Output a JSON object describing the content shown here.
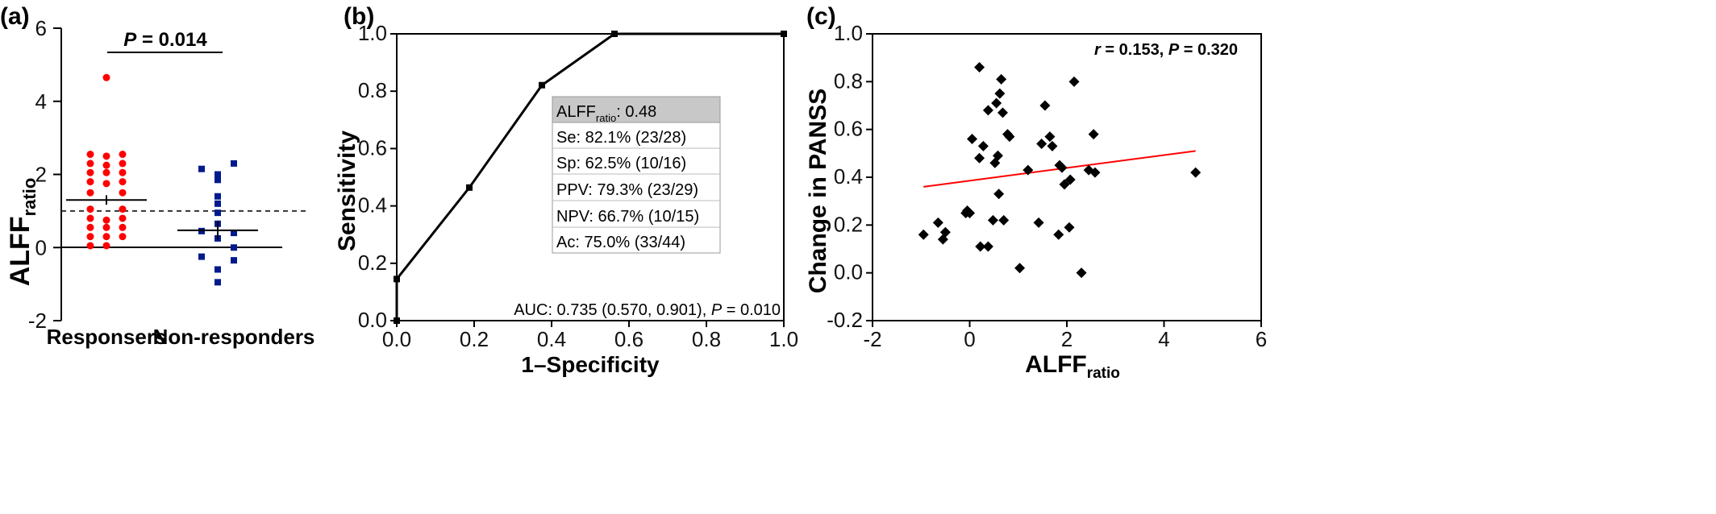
{
  "chart_data": [
    {
      "panel_label": "(a)",
      "type": "scatter",
      "ylabel": "ALFF",
      "ylabel_sub": "ratio",
      "categories": [
        "Responsers",
        "Non-responders"
      ],
      "ylim": [
        -2,
        6
      ],
      "yticks": [
        -2,
        0,
        2,
        4,
        6
      ],
      "yticks_labels": [
        "-2",
        "0",
        "2",
        "4",
        "6"
      ],
      "threshold_dashed": 1.0,
      "zero_line": 0,
      "annotation": {
        "italic": "P",
        "rest": " = 0.014"
      },
      "series": [
        {
          "name": "Responsers",
          "color": "#ff0000",
          "marker": "circle",
          "mean": 1.3,
          "sem_half": 0.13,
          "values": [
            {
              "dx": 0,
              "y": 4.65
            },
            {
              "dx": -0.5,
              "y": 2.55
            },
            {
              "dx": 0,
              "y": 2.5
            },
            {
              "dx": 0.5,
              "y": 2.55
            },
            {
              "dx": -0.5,
              "y": 2.3
            },
            {
              "dx": 0,
              "y": 2.25
            },
            {
              "dx": 0.5,
              "y": 2.3
            },
            {
              "dx": -0.5,
              "y": 2.05
            },
            {
              "dx": 0,
              "y": 2.05
            },
            {
              "dx": 0.5,
              "y": 2.05
            },
            {
              "dx": -0.5,
              "y": 1.8
            },
            {
              "dx": 0,
              "y": 1.75
            },
            {
              "dx": 0.5,
              "y": 1.8
            },
            {
              "dx": -0.5,
              "y": 1.5
            },
            {
              "dx": 0.5,
              "y": 1.5
            },
            {
              "dx": -0.5,
              "y": 1.05
            },
            {
              "dx": 0.5,
              "y": 1.05
            },
            {
              "dx": -0.5,
              "y": 0.8
            },
            {
              "dx": 0,
              "y": 0.75
            },
            {
              "dx": 0.5,
              "y": 0.8
            },
            {
              "dx": -0.5,
              "y": 0.55
            },
            {
              "dx": 0,
              "y": 0.55
            },
            {
              "dx": 0.5,
              "y": 0.55
            },
            {
              "dx": -0.5,
              "y": 0.3
            },
            {
              "dx": 0,
              "y": 0.3
            },
            {
              "dx": 0.5,
              "y": 0.3
            },
            {
              "dx": -0.5,
              "y": 0.05
            },
            {
              "dx": 0,
              "y": 0.05
            }
          ]
        },
        {
          "name": "Non-responders",
          "color": "#001a8c",
          "marker": "square",
          "mean": 0.47,
          "sem_half": 0.25,
          "values": [
            {
              "dx": 0.5,
              "y": 2.3
            },
            {
              "dx": -0.5,
              "y": 2.15
            },
            {
              "dx": 0,
              "y": 2.0
            },
            {
              "dx": 0,
              "y": 1.85
            },
            {
              "dx": 0,
              "y": 1.4
            },
            {
              "dx": 0,
              "y": 1.2
            },
            {
              "dx": 0,
              "y": 0.95
            },
            {
              "dx": 0,
              "y": 0.65
            },
            {
              "dx": -0.5,
              "y": 0.45
            },
            {
              "dx": 0.5,
              "y": 0.4
            },
            {
              "dx": 0,
              "y": 0.25
            },
            {
              "dx": 0.5,
              "y": 0.0
            },
            {
              "dx": -0.5,
              "y": -0.25
            },
            {
              "dx": 0.5,
              "y": -0.35
            },
            {
              "dx": 0,
              "y": -0.6
            },
            {
              "dx": 0,
              "y": -0.95
            }
          ]
        }
      ]
    },
    {
      "panel_label": "(b)",
      "type": "line",
      "xlabel": "1–Specificity",
      "ylabel": "Sensitivity",
      "xlim": [
        0,
        1.0
      ],
      "ylim": [
        0,
        1.0
      ],
      "xticks_labels": [
        "0.0",
        "0.2",
        "0.4",
        "0.6",
        "0.8",
        "1.0"
      ],
      "yticks_labels": [
        "0.0",
        "0.2",
        "0.4",
        "0.6",
        "0.8",
        "1.0"
      ],
      "roc_points": [
        {
          "x": 0.0,
          "y": 0.0
        },
        {
          "x": 0.0,
          "y": 0.145
        },
        {
          "x": 0.1875,
          "y": 0.464
        },
        {
          "x": 0.375,
          "y": 0.821
        },
        {
          "x": 0.5625,
          "y": 1.0
        },
        {
          "x": 1.0,
          "y": 1.0
        }
      ],
      "box": {
        "header_main": "ALFF",
        "header_sub": "ratio",
        "header_value": ": 0.48",
        "rows": [
          "Se: 82.1% (23/28)",
          "Sp: 62.5% (10/16)",
          "PPV: 79.3% (23/29)",
          "NPV: 66.7% (10/15)",
          "Ac: 75.0% (33/44)"
        ]
      },
      "auc_text": {
        "main": "AUC: 0.735 (0.570, 0.901), ",
        "italic": "P",
        "rest": " = 0.010"
      }
    },
    {
      "panel_label": "(c)",
      "type": "scatter",
      "xlabel": "ALFF",
      "xlabel_sub": "ratio",
      "ylabel": "Change in PANSS",
      "xlim": [
        -2,
        6
      ],
      "ylim": [
        -0.2,
        1.0
      ],
      "xticks_labels": [
        "-2",
        "0",
        "2",
        "4",
        "6"
      ],
      "yticks_labels": [
        "-0.2",
        "0.0",
        "0.2",
        "0.4",
        "0.6",
        "0.8",
        "1.0"
      ],
      "annotation": {
        "italic": "r",
        "mid": " = 0.153, ",
        "italic2": "P",
        "rest": " = 0.320"
      },
      "fit_line": {
        "color": "#ff0000",
        "x": [
          -0.95,
          4.65
        ],
        "y": [
          0.36,
          0.51
        ]
      },
      "points": [
        {
          "x": -0.95,
          "y": 0.16
        },
        {
          "x": -0.65,
          "y": 0.21
        },
        {
          "x": -0.55,
          "y": 0.14
        },
        {
          "x": -0.5,
          "y": 0.17
        },
        {
          "x": -0.08,
          "y": 0.25
        },
        {
          "x": -0.05,
          "y": 0.26
        },
        {
          "x": 0.0,
          "y": 0.25
        },
        {
          "x": 0.05,
          "y": 0.56
        },
        {
          "x": 0.2,
          "y": 0.48
        },
        {
          "x": 0.2,
          "y": 0.86
        },
        {
          "x": 0.22,
          "y": 0.11
        },
        {
          "x": 0.28,
          "y": 0.53
        },
        {
          "x": 0.38,
          "y": 0.11
        },
        {
          "x": 0.38,
          "y": 0.68
        },
        {
          "x": 0.48,
          "y": 0.22
        },
        {
          "x": 0.52,
          "y": 0.46
        },
        {
          "x": 0.55,
          "y": 0.71
        },
        {
          "x": 0.58,
          "y": 0.49
        },
        {
          "x": 0.6,
          "y": 0.33
        },
        {
          "x": 0.62,
          "y": 0.75
        },
        {
          "x": 0.65,
          "y": 0.81
        },
        {
          "x": 0.68,
          "y": 0.67
        },
        {
          "x": 0.7,
          "y": 0.22
        },
        {
          "x": 0.78,
          "y": 0.58
        },
        {
          "x": 0.82,
          "y": 0.57
        },
        {
          "x": 1.03,
          "y": 0.02
        },
        {
          "x": 1.2,
          "y": 0.43
        },
        {
          "x": 1.42,
          "y": 0.21
        },
        {
          "x": 1.48,
          "y": 0.54
        },
        {
          "x": 1.55,
          "y": 0.7
        },
        {
          "x": 1.65,
          "y": 0.57
        },
        {
          "x": 1.7,
          "y": 0.53
        },
        {
          "x": 1.83,
          "y": 0.16
        },
        {
          "x": 1.85,
          "y": 0.45
        },
        {
          "x": 1.9,
          "y": 0.44
        },
        {
          "x": 1.95,
          "y": 0.37
        },
        {
          "x": 2.05,
          "y": 0.19
        },
        {
          "x": 2.07,
          "y": 0.39
        },
        {
          "x": 2.15,
          "y": 0.8
        },
        {
          "x": 2.3,
          "y": 0.0
        },
        {
          "x": 2.45,
          "y": 0.43
        },
        {
          "x": 2.55,
          "y": 0.58
        },
        {
          "x": 2.58,
          "y": 0.42
        },
        {
          "x": 4.65,
          "y": 0.42
        }
      ]
    }
  ]
}
